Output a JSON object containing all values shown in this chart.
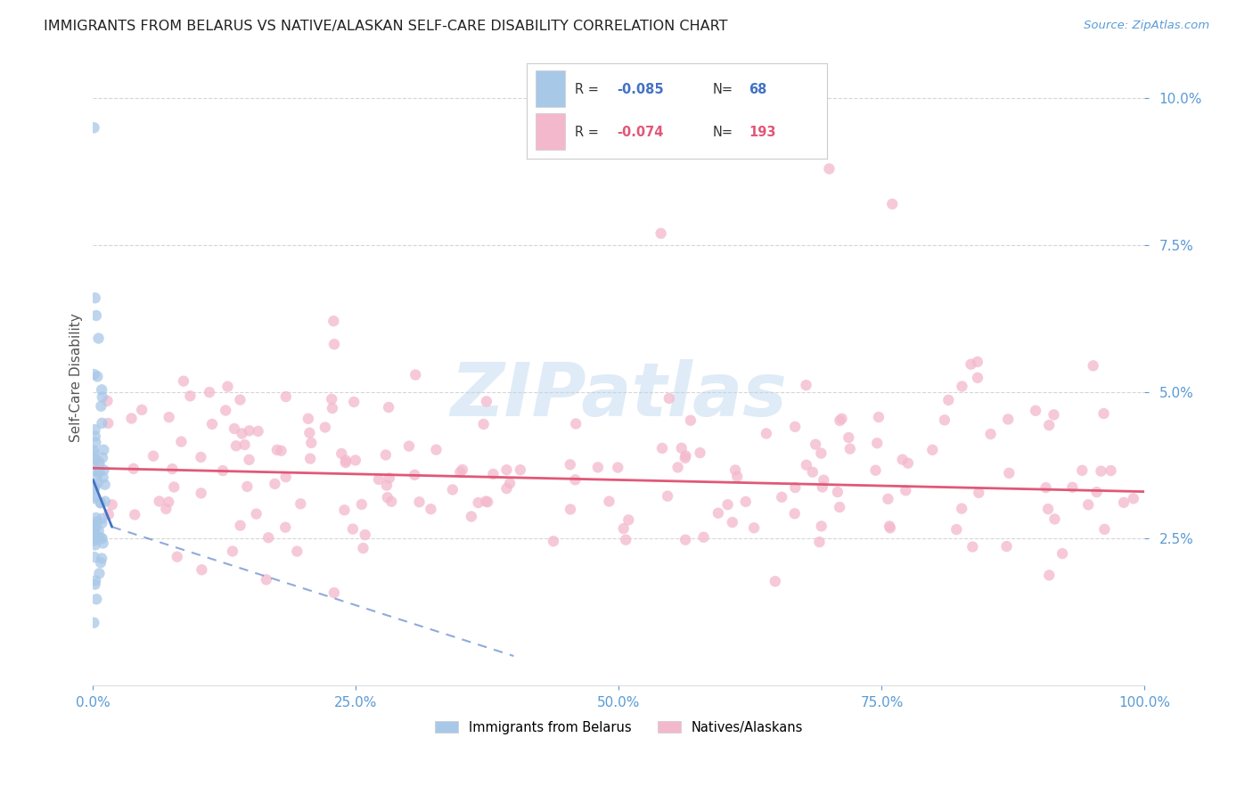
{
  "title": "IMMIGRANTS FROM BELARUS VS NATIVE/ALASKAN SELF-CARE DISABILITY CORRELATION CHART",
  "source": "Source: ZipAtlas.com",
  "ylabel": "Self-Care Disability",
  "legend_label1": "Immigrants from Belarus",
  "legend_label2": "Natives/Alaskans",
  "r1": -0.085,
  "n1": 68,
  "r2": -0.074,
  "n2": 193,
  "color1": "#a8c8e8",
  "color1_line": "#4472c4",
  "color2": "#f4b8cc",
  "color2_line": "#e05878",
  "background": "#ffffff",
  "grid_color": "#cccccc",
  "xmin": 0.0,
  "xmax": 1.0,
  "ymin": 0.0,
  "ymax": 0.105,
  "watermark": "ZIPatlas",
  "yticks": [
    0.025,
    0.05,
    0.075,
    0.1
  ],
  "xticks": [
    0.0,
    0.25,
    0.5,
    0.75,
    1.0
  ],
  "source_color": "#5b9bd5",
  "tick_color": "#5b9bd5",
  "xlabel_color": "#5b9bd5",
  "legend_r_color_blue": "#4472c4",
  "legend_r_color_pink": "#e05878",
  "legend_n_color_blue": "#4472c4",
  "legend_n_color_pink": "#e05878"
}
